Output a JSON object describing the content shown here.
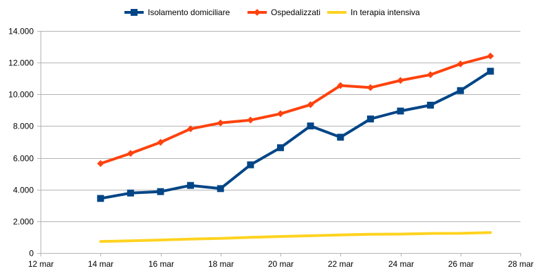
{
  "chart_data": {
    "type": "line",
    "x_ticks": [
      "12 mar",
      "14 mar",
      "16 mar",
      "18 mar",
      "20 mar",
      "22 mar",
      "24 mar",
      "26 mar",
      "28 mar"
    ],
    "xlim": [
      "12 mar",
      "28 mar"
    ],
    "x": [
      "14 mar",
      "15 mar",
      "16 mar",
      "17 mar",
      "18 mar",
      "19 mar",
      "20 mar",
      "21 mar",
      "22 mar",
      "23 mar",
      "24 mar",
      "25 mar",
      "26 mar",
      "27 mar"
    ],
    "y_ticks": [
      "0",
      "2.000",
      "4.000",
      "6.000",
      "8.000",
      "10.000",
      "12.000",
      "14.000"
    ],
    "ylim": [
      0,
      14000
    ],
    "grid": "horizontal",
    "legend_position": "top",
    "series": [
      {
        "name": "Isolamento domiciliare",
        "color": "#004586",
        "marker": "square",
        "values": [
          3440,
          3780,
          3870,
          4260,
          4060,
          5560,
          6640,
          8010,
          7300,
          8450,
          8950,
          9320,
          10240,
          11460
        ]
      },
      {
        "name": "Ospedalizzati",
        "color": "#ff420e",
        "marker": "diamond",
        "values": [
          5640,
          6280,
          6980,
          7830,
          8200,
          8380,
          8780,
          9350,
          10560,
          10430,
          10880,
          11240,
          11920,
          12420
        ]
      },
      {
        "name": "In terapia intensiva",
        "color": "#ffd320",
        "marker": "none",
        "values": [
          730,
          770,
          820,
          880,
          920,
          990,
          1040,
          1090,
          1140,
          1180,
          1190,
          1230,
          1240,
          1290
        ]
      }
    ]
  }
}
